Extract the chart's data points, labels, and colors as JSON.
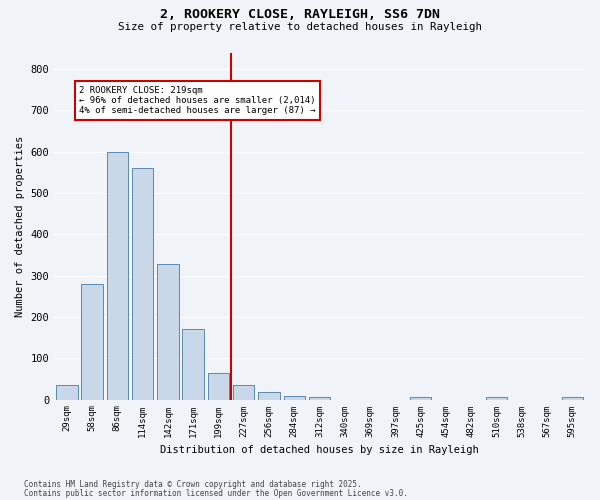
{
  "title": "2, ROOKERY CLOSE, RAYLEIGH, SS6 7DN",
  "subtitle": "Size of property relative to detached houses in Rayleigh",
  "xlabel": "Distribution of detached houses by size in Rayleigh",
  "ylabel": "Number of detached properties",
  "bar_color": "#c8d8e8",
  "bar_edge_color": "#5a8ab0",
  "background_color": "#f0f4f8",
  "grid_color": "#ffffff",
  "categories": [
    "29sqm",
    "58sqm",
    "86sqm",
    "114sqm",
    "142sqm",
    "171sqm",
    "199sqm",
    "227sqm",
    "256sqm",
    "284sqm",
    "312sqm",
    "340sqm",
    "369sqm",
    "397sqm",
    "425sqm",
    "454sqm",
    "482sqm",
    "510sqm",
    "538sqm",
    "567sqm",
    "595sqm"
  ],
  "values": [
    35,
    280,
    600,
    560,
    328,
    170,
    65,
    35,
    18,
    8,
    7,
    0,
    0,
    0,
    7,
    0,
    0,
    5,
    0,
    0,
    5
  ],
  "vline_x": 6.5,
  "vline_color": "#cc0000",
  "annotation_lines": [
    "2 ROOKERY CLOSE: 219sqm",
    "← 96% of detached houses are smaller (2,014)",
    "4% of semi-detached houses are larger (87) →"
  ],
  "ylim": [
    0,
    840
  ],
  "yticks": [
    0,
    100,
    200,
    300,
    400,
    500,
    600,
    700,
    800
  ],
  "footer_line1": "Contains HM Land Registry data © Crown copyright and database right 2025.",
  "footer_line2": "Contains public sector information licensed under the Open Government Licence v3.0."
}
